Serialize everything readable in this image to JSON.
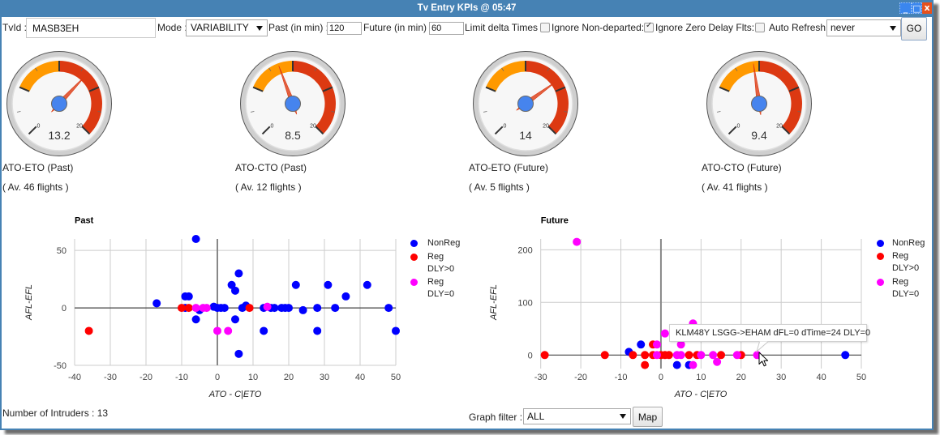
{
  "window": {
    "title": "Tv Entry KPIs @ 05:47",
    "controls": {
      "minimize": "_",
      "maximize": "□",
      "close": "x"
    }
  },
  "colors": {
    "title_bar": "#4682b4",
    "accent": "#4682b4"
  },
  "form": {
    "tvid_label": "TvId :",
    "tvid_value": "MASB3EH",
    "mode_label": "Mode :",
    "mode_value": "VARIABILITY",
    "past_label": "Past (in min) :",
    "past_value": "120",
    "future_label": "Future (in min) :",
    "future_value": "60",
    "limit_delta_label": "Limit delta Times",
    "limit_delta_checked": false,
    "ignore_nondeparted_label": "Ignore Non-departed:",
    "ignore_nondeparted_checked": true,
    "ignore_zero_delay_label": "Ignore Zero Delay Flts:",
    "ignore_zero_delay_checked": false,
    "auto_refresh_label": "Auto Refresh:",
    "auto_refresh_value": "never",
    "go_label": "GO"
  },
  "gauge_style": {
    "needle_color": "#dc3912",
    "knob_color": "#4684ee"
  },
  "gauges": [
    {
      "title": "ATO-ETO (Past)",
      "subtitle": "( Av. 46 flights )",
      "value": 13.2,
      "display_value": "13.2",
      "min": 0,
      "max": 20,
      "min_label": "0",
      "max_label": "20",
      "bands": [
        {
          "from": 5,
          "to": 10,
          "color": "#ff9900"
        },
        {
          "from": 10,
          "to": 20,
          "color": "#dc3912"
        }
      ]
    },
    {
      "title": "ATO-CTO (Past)",
      "subtitle": "( Av. 12 flights )",
      "value": 8.5,
      "display_value": "8.5",
      "min": 0,
      "max": 20,
      "min_label": "0",
      "max_label": "20",
      "bands": [
        {
          "from": 5,
          "to": 10,
          "color": "#ff9900"
        },
        {
          "from": 10,
          "to": 20,
          "color": "#dc3912"
        }
      ]
    },
    {
      "title": "ATO-ETO (Future)",
      "subtitle": "( Av. 5 flights )",
      "value": 14,
      "display_value": "14",
      "min": 0,
      "max": 20,
      "min_label": "0",
      "max_label": "20",
      "bands": [
        {
          "from": 5,
          "to": 10,
          "color": "#ff9900"
        },
        {
          "from": 10,
          "to": 20,
          "color": "#dc3912"
        }
      ]
    },
    {
      "title": "ATO-CTO (Future)",
      "subtitle": "( Av. 41 flights )",
      "value": 9.4,
      "display_value": "9.4",
      "min": 0,
      "max": 20,
      "min_label": "0",
      "max_label": "20",
      "bands": [
        {
          "from": 5,
          "to": 10,
          "color": "#ff9900"
        },
        {
          "from": 10,
          "to": 20,
          "color": "#dc3912"
        }
      ]
    }
  ],
  "tooltip": {
    "text": "KLM48Y LSGG->EHAM dFL=0 dTime=24 DLY=0"
  },
  "footer": {
    "intruders": "Number of Intruders : 13",
    "graph_filter_label": "Graph filter :",
    "graph_filter_value": "ALL",
    "map_label": "Map"
  },
  "chart_data": [
    {
      "type": "scatter",
      "title": "Past",
      "xlabel": "ATO - C|ETO",
      "ylabel": "AFL-EFL",
      "xlim": [
        -40,
        50
      ],
      "ylim": [
        -50,
        60
      ],
      "xticks": [
        -40,
        -30,
        -20,
        -10,
        0,
        10,
        20,
        30,
        40,
        50
      ],
      "yticks": [
        -50,
        0,
        50
      ],
      "grid": true,
      "legend_position": "right",
      "series": [
        {
          "name": "NonReg",
          "legend_lines": [
            "NonReg"
          ],
          "color": "#0000ff",
          "points": [
            [
              -17,
              4
            ],
            [
              -9,
              10
            ],
            [
              -8,
              10
            ],
            [
              -9,
              0
            ],
            [
              -6,
              60
            ],
            [
              -5,
              -2
            ],
            [
              -6,
              -10
            ],
            [
              -1,
              1
            ],
            [
              0,
              0
            ],
            [
              1,
              0
            ],
            [
              2,
              0
            ],
            [
              4,
              20
            ],
            [
              5,
              15
            ],
            [
              6,
              30
            ],
            [
              5,
              -10
            ],
            [
              6,
              -40
            ],
            [
              7,
              0
            ],
            [
              8,
              2
            ],
            [
              13,
              0
            ],
            [
              15,
              0
            ],
            [
              16,
              0
            ],
            [
              18,
              0
            ],
            [
              19,
              0
            ],
            [
              20,
              0
            ],
            [
              13,
              -20
            ],
            [
              22,
              20
            ],
            [
              24,
              -2
            ],
            [
              28,
              0
            ],
            [
              28,
              -20
            ],
            [
              31,
              20
            ],
            [
              33,
              0
            ],
            [
              36,
              10
            ],
            [
              42,
              20
            ],
            [
              48,
              0
            ],
            [
              50,
              -20
            ]
          ]
        },
        {
          "name": "Reg DLY>0",
          "legend_lines": [
            "Reg",
            "DLY>0"
          ],
          "color": "#ff0000",
          "points": [
            [
              -36,
              -20
            ],
            [
              -10,
              0
            ],
            [
              -8,
              0
            ],
            [
              9,
              0
            ]
          ]
        },
        {
          "name": "Reg DLY=0",
          "legend_lines": [
            "Reg",
            "DLY=0"
          ],
          "color": "#ff00ff",
          "points": [
            [
              -6,
              0
            ],
            [
              -4,
              0
            ],
            [
              -3,
              0
            ],
            [
              0,
              -20
            ],
            [
              3,
              -20
            ],
            [
              14,
              1
            ]
          ]
        }
      ]
    },
    {
      "type": "scatter",
      "title": "Future",
      "xlabel": "ATO - C|ETO",
      "ylabel": "AFL-EFL",
      "xlim": [
        -30,
        50
      ],
      "ylim": [
        -25.7,
        220.5
      ],
      "xticks": [
        -30,
        -20,
        -10,
        0,
        10,
        20,
        30,
        40,
        50
      ],
      "yticks": [
        0,
        100,
        200
      ],
      "grid": true,
      "legend_position": "right",
      "series": [
        {
          "name": "NonReg",
          "legend_lines": [
            "NonReg"
          ],
          "color": "#0000ff",
          "points": [
            [
              -8,
              6
            ],
            [
              -5,
              20
            ],
            [
              4,
              -19
            ],
            [
              7,
              -19
            ],
            [
              46,
              0
            ]
          ]
        },
        {
          "name": "Reg DLY>0",
          "legend_lines": [
            "Reg",
            "DLY>0"
          ],
          "color": "#ff0000",
          "points": [
            [
              -29,
              0
            ],
            [
              -14,
              0
            ],
            [
              -7,
              0
            ],
            [
              -4,
              0
            ],
            [
              -4,
              -19
            ],
            [
              -2,
              20
            ],
            [
              -2,
              0
            ],
            [
              0,
              0
            ],
            [
              1,
              0
            ],
            [
              2,
              0
            ],
            [
              7,
              0
            ],
            [
              9,
              0
            ],
            [
              15,
              0
            ],
            [
              20,
              0
            ]
          ]
        },
        {
          "name": "Reg DLY=0",
          "legend_lines": [
            "Reg",
            "DLY=0"
          ],
          "color": "#ff00ff",
          "points": [
            [
              -21,
              215
            ],
            [
              -1,
              20
            ],
            [
              -1,
              0
            ],
            [
              1,
              41
            ],
            [
              8,
              60
            ],
            [
              5,
              20
            ],
            [
              4,
              0
            ],
            [
              5,
              0
            ],
            [
              10,
              0
            ],
            [
              13,
              0
            ],
            [
              19,
              0
            ],
            [
              24,
              0
            ],
            [
              14,
              -13
            ],
            [
              8,
              -19
            ]
          ]
        }
      ]
    }
  ]
}
